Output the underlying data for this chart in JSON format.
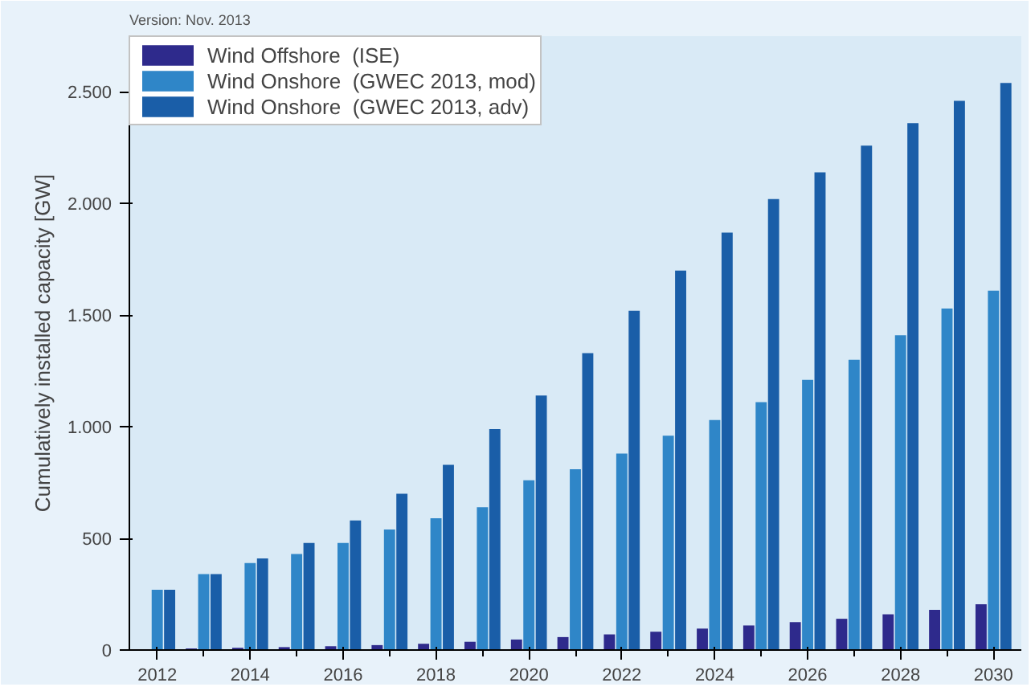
{
  "chart_data": {
    "type": "bar",
    "ylabel": "Cumulatively installed capacity [GW]",
    "annotations": [
      "Version: Nov. 2013"
    ],
    "x": [
      2012,
      2013,
      2014,
      2015,
      2016,
      2017,
      2018,
      2019,
      2020,
      2021,
      2022,
      2023,
      2024,
      2025,
      2026,
      2027,
      2028,
      2029,
      2030
    ],
    "series": [
      {
        "name": "Wind Offshore  (ISE)",
        "color": "#2e2a8c",
        "values": [
          null,
          7,
          10,
          13,
          17,
          22,
          28,
          37,
          47,
          58,
          70,
          82,
          96,
          110,
          125,
          140,
          160,
          180,
          205
        ]
      },
      {
        "name": "Wind Onshore  (GWEC 2013, mod)",
        "color": "#2f86c8",
        "values": [
          270,
          340,
          390,
          430,
          480,
          540,
          590,
          640,
          760,
          810,
          880,
          960,
          1030,
          1110,
          1210,
          1300,
          1410,
          1530,
          1610
        ]
      },
      {
        "name": "Wind Onshore  (GWEC 2013, adv)",
        "color": "#1a5ea8",
        "values": [
          270,
          340,
          410,
          480,
          580,
          700,
          830,
          990,
          1140,
          1330,
          1520,
          1700,
          1870,
          2020,
          2140,
          2260,
          2360,
          2460,
          2540
        ]
      }
    ],
    "xlim": [
      2011.4,
      2030.6
    ],
    "xticks": [
      2012,
      2014,
      2016,
      2018,
      2020,
      2022,
      2024,
      2026,
      2028,
      2030
    ],
    "ylim": [
      0,
      2750
    ],
    "yticks": [
      0,
      500,
      {
        "value": 1000,
        "label": "1.000"
      },
      {
        "value": 1500,
        "label": "1.500"
      },
      {
        "value": 2000,
        "label": "2.000"
      },
      {
        "value": 2500,
        "label": "2.500"
      }
    ],
    "grid": false,
    "legend": "top left"
  }
}
